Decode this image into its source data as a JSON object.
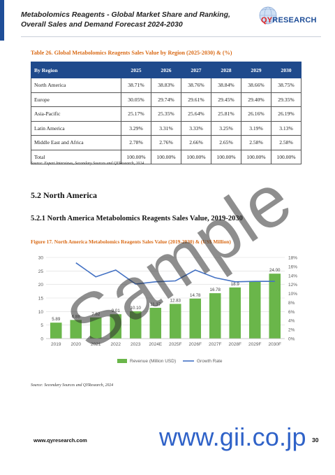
{
  "header": {
    "doc_title": "Metabolomics Reagents - Global Market Share and Ranking, Overall Sales and Demand Forecast 2024-2030",
    "logo_text_q": "QY",
    "logo_text_rest": "RESEARCH"
  },
  "table": {
    "caption": "Table 26.   Global Metabolomics Reagents Sales Value by Region (2025-2030) & (%)",
    "header_label": "By Region",
    "columns": [
      "2025",
      "2026",
      "2027",
      "2028",
      "2029",
      "2030"
    ],
    "rows": [
      {
        "region": "North America",
        "values": [
          "38.71%",
          "38.83%",
          "38.76%",
          "38.84%",
          "38.66%",
          "38.75%"
        ]
      },
      {
        "region": "Europe",
        "values": [
          "30.05%",
          "29.74%",
          "29.61%",
          "29.45%",
          "29.40%",
          "29.35%"
        ]
      },
      {
        "region": "Asia-Pacific",
        "values": [
          "25.17%",
          "25.35%",
          "25.64%",
          "25.81%",
          "26.16%",
          "26.19%"
        ]
      },
      {
        "region": "Latin America",
        "values": [
          "3.29%",
          "3.31%",
          "3.33%",
          "3.25%",
          "3.19%",
          "3.13%"
        ]
      },
      {
        "region": "Middle East and Africa",
        "values": [
          "2.78%",
          "2.76%",
          "2.66%",
          "2.65%",
          "2.58%",
          "2.58%"
        ]
      },
      {
        "region": "Total",
        "values": [
          "100.00%",
          "100.00%",
          "100.00%",
          "100.00%",
          "100.00%",
          "100.00%"
        ]
      }
    ],
    "source": "Source: Expert Interviews, Secondary Sources and QYResearch, 2024"
  },
  "section": {
    "heading": "5.2   North America",
    "subheading": "5.2.1   North America Metabolomics Reagents Sales Value, 2019-2030"
  },
  "figure": {
    "caption": "Figure 17.   North America Metabolomics Reagents Sales Value (2019-2030) & (US$ Million)",
    "source": "Source: Secondary Sources and QYResearch, 2024"
  },
  "chart_data": {
    "type": "bar",
    "categories": [
      "2019",
      "2020",
      "2021",
      "2022",
      "2023",
      "2024E",
      "2025F",
      "2026F",
      "2027F",
      "2028F",
      "2029F",
      "2030F"
    ],
    "series": [
      {
        "name": "Revenue (Million USD)",
        "type": "bar",
        "axis": "left",
        "values": [
          5.89,
          6.88,
          7.82,
          9.01,
          10.1,
          11.37,
          12.83,
          14.78,
          16.78,
          18.9,
          21.3,
          24.0
        ]
      },
      {
        "name": "Growth Rate",
        "type": "line",
        "axis": "right",
        "values": [
          null,
          16.8,
          13.7,
          15.2,
          12.1,
          12.6,
          12.8,
          15.2,
          13.5,
          12.6,
          12.7,
          12.7
        ]
      }
    ],
    "bar_labels": [
      "5.89",
      "6.88",
      "7.82",
      "9.01",
      "10.10",
      "11.37",
      "12.83",
      "14.78",
      "16.78",
      "18.9",
      "",
      "24.00"
    ],
    "y_left": {
      "min": 0,
      "max": 30,
      "ticks": [
        "0",
        "5",
        "10",
        "15",
        "20",
        "25",
        "30"
      ]
    },
    "y_right": {
      "min": 0,
      "max": 18,
      "ticks": [
        "0%",
        "2%",
        "4%",
        "6%",
        "8%",
        "10%",
        "12%",
        "14%",
        "16%",
        "18%"
      ]
    },
    "legend_position": "bottom",
    "grid": true,
    "colors": {
      "bar": "#6ab64a",
      "line": "#4472c4"
    }
  },
  "footer": {
    "url": "www.qyresearch.com",
    "page_number": "30",
    "gii_text": "www.gii.co.jp"
  },
  "watermark": "Sample"
}
